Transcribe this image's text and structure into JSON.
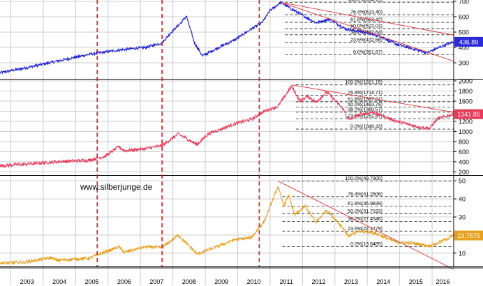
{
  "watermark": "www.silberjunge.de",
  "colors": {
    "background": "#ffffff",
    "grid": "#cccccc",
    "fib_line": "#222222",
    "trend_line": "#e03030",
    "event_line": "#dd1111",
    "axis_text": "#000000",
    "panel_border": "#000000"
  },
  "chart_data": {
    "type": "line",
    "x_axis": {
      "ticks": [
        "2003",
        "2004",
        "2005",
        "2006",
        "2007",
        "2008",
        "2009",
        "2010",
        "2011",
        "2012",
        "2013",
        "2014",
        "2015",
        "2016"
      ],
      "start": "2002-09",
      "end": "2016-09"
    },
    "event_markers": [
      "2005-09",
      "2007-09",
      "2010-09"
    ],
    "panels": [
      {
        "id": "top",
        "color": "#1a1ad6",
        "ylim": [
          200,
          700
        ],
        "yticks": [
          300,
          400,
          500,
          600,
          700
        ],
        "last_value": "436.89",
        "last_value_bg": "#2a2ad8",
        "fib_levels": [
          {
            "label": "100.0%(694.19)",
            "value": 694.19
          },
          {
            "label": "76.4%(613.40)",
            "value": 613.4
          },
          {
            "label": "61.8%(563.42)",
            "value": 563.42
          },
          {
            "label": "50.0%(523.03)",
            "value": 523.03
          },
          {
            "label": "38.2%(482.64)",
            "value": 482.64
          },
          {
            "label": "23.6%(432.66)",
            "value": 432.66
          },
          {
            "label": "0.0%(351.87)",
            "value": 351.87
          }
        ],
        "anchors": [
          [
            "2002-09",
            235
          ],
          [
            "2003-06",
            265
          ],
          [
            "2004-06",
            310
          ],
          [
            "2005-06",
            355
          ],
          [
            "2006-06",
            385
          ],
          [
            "2007-03",
            400
          ],
          [
            "2007-09",
            430
          ],
          [
            "2008-01",
            510
          ],
          [
            "2008-04",
            560
          ],
          [
            "2008-06",
            605
          ],
          [
            "2008-09",
            430
          ],
          [
            "2008-12",
            345
          ],
          [
            "2009-06",
            400
          ],
          [
            "2009-12",
            450
          ],
          [
            "2010-06",
            520
          ],
          [
            "2010-10",
            560
          ],
          [
            "2011-01",
            640
          ],
          [
            "2011-05",
            694
          ],
          [
            "2011-08",
            660
          ],
          [
            "2012-01",
            610
          ],
          [
            "2012-06",
            560
          ],
          [
            "2012-11",
            585
          ],
          [
            "2013-05",
            520
          ],
          [
            "2013-12",
            500
          ],
          [
            "2014-06",
            470
          ],
          [
            "2014-12",
            420
          ],
          [
            "2015-06",
            390
          ],
          [
            "2015-11",
            365
          ],
          [
            "2016-05",
            410
          ],
          [
            "2016-09",
            437
          ]
        ],
        "trend_lines": [
          [
            [
              "2011-05",
              694
            ],
            [
              "2016-09",
              480
            ]
          ],
          [
            [
              "2011-05",
              694
            ],
            [
              "2016-09",
              310
            ]
          ]
        ]
      },
      {
        "id": "middle",
        "color": "#e83a5a",
        "ylim": [
          150,
          2000
        ],
        "yticks": [
          200,
          400,
          600,
          800,
          1000,
          1200,
          1400,
          1600,
          1800,
          2000
        ],
        "last_value": "1341.85",
        "last_value_bg": "#e83a5a",
        "fib_levels": [
          {
            "label": "100.0%(1921.15)",
            "value": 1921.15
          },
          {
            "label": "76.4%(1714.71)",
            "value": 1714.71
          },
          {
            "label": "61.8%(1587.01)",
            "value": 1587.01
          },
          {
            "label": "50.0%(1483.79)",
            "value": 1483.79
          },
          {
            "label": "38.2%(1380.57)",
            "value": 1380.57
          },
          {
            "label": "23.6%(1252.87)",
            "value": 1252.87
          },
          {
            "label": "0.0%(1046.43)",
            "value": 1046.43
          }
        ],
        "anchors": [
          [
            "2002-09",
            320
          ],
          [
            "2003-06",
            350
          ],
          [
            "2004-06",
            400
          ],
          [
            "2005-06",
            430
          ],
          [
            "2005-12",
            510
          ],
          [
            "2006-05",
            700
          ],
          [
            "2006-07",
            620
          ],
          [
            "2007-03",
            660
          ],
          [
            "2007-09",
            720
          ],
          [
            "2008-03",
            950
          ],
          [
            "2008-10",
            740
          ],
          [
            "2009-02",
            950
          ],
          [
            "2009-12",
            1150
          ],
          [
            "2010-06",
            1240
          ],
          [
            "2010-11",
            1400
          ],
          [
            "2011-04",
            1500
          ],
          [
            "2011-09",
            1900
          ],
          [
            "2011-12",
            1600
          ],
          [
            "2012-03",
            1700
          ],
          [
            "2012-06",
            1580
          ],
          [
            "2012-10",
            1780
          ],
          [
            "2013-04",
            1450
          ],
          [
            "2013-06",
            1230
          ],
          [
            "2013-10",
            1330
          ],
          [
            "2014-03",
            1380
          ],
          [
            "2014-12",
            1200
          ],
          [
            "2015-07",
            1100
          ],
          [
            "2015-12",
            1060
          ],
          [
            "2016-03",
            1250
          ],
          [
            "2016-09",
            1342
          ]
        ],
        "trend_lines": [
          [
            [
              "2011-09",
              1921
            ],
            [
              "2016-09",
              1380
            ]
          ]
        ]
      },
      {
        "id": "bottom",
        "color": "#e8a020",
        "ylim": [
          3,
          52
        ],
        "yticks": [
          10,
          20,
          30,
          40,
          50
        ],
        "last_value": "19.7575",
        "last_value_bg": "#e8a020",
        "fib_levels": [
          {
            "label": "100.0%(49.7900)",
            "value": 49.79
          },
          {
            "label": "76.4%(41.2606)",
            "value": 41.2606
          },
          {
            "label": "61.8%(35.9839)",
            "value": 35.9839
          },
          {
            "label": "50.0%(31.7193)",
            "value": 31.7193
          },
          {
            "label": "38.2%(27.4546)",
            "value": 27.4546
          },
          {
            "label": "23.6%(22.1779)",
            "value": 22.1779
          },
          {
            "label": "0.0%(13.6485)",
            "value": 13.6485
          }
        ],
        "anchors": [
          [
            "2002-09",
            4.5
          ],
          [
            "2003-06",
            4.9
          ],
          [
            "2004-04",
            7.5
          ],
          [
            "2004-06",
            6.0
          ],
          [
            "2005-06",
            7.2
          ],
          [
            "2006-05",
            13.5
          ],
          [
            "2006-07",
            10.5
          ],
          [
            "2007-03",
            13.5
          ],
          [
            "2007-09",
            13.0
          ],
          [
            "2008-03",
            20.0
          ],
          [
            "2008-10",
            9.5
          ],
          [
            "2009-06",
            14.0
          ],
          [
            "2009-12",
            17.5
          ],
          [
            "2010-06",
            18.5
          ],
          [
            "2010-11",
            28.0
          ],
          [
            "2011-04",
            47.0
          ],
          [
            "2011-06",
            36.0
          ],
          [
            "2011-08",
            42.0
          ],
          [
            "2011-10",
            31.0
          ],
          [
            "2012-02",
            36.0
          ],
          [
            "2012-06",
            27.0
          ],
          [
            "2012-10",
            34.0
          ],
          [
            "2013-04",
            24.0
          ],
          [
            "2013-06",
            19.5
          ],
          [
            "2013-10",
            22.0
          ],
          [
            "2014-03",
            21.5
          ],
          [
            "2014-12",
            16.0
          ],
          [
            "2015-06",
            15.5
          ],
          [
            "2015-12",
            14.0
          ],
          [
            "2016-03",
            15.5
          ],
          [
            "2016-09",
            19.76
          ]
        ],
        "trend_lines": [
          [
            [
              "2011-04",
              49.8
            ],
            [
              "2016-09",
              1.0
            ]
          ]
        ]
      }
    ]
  }
}
